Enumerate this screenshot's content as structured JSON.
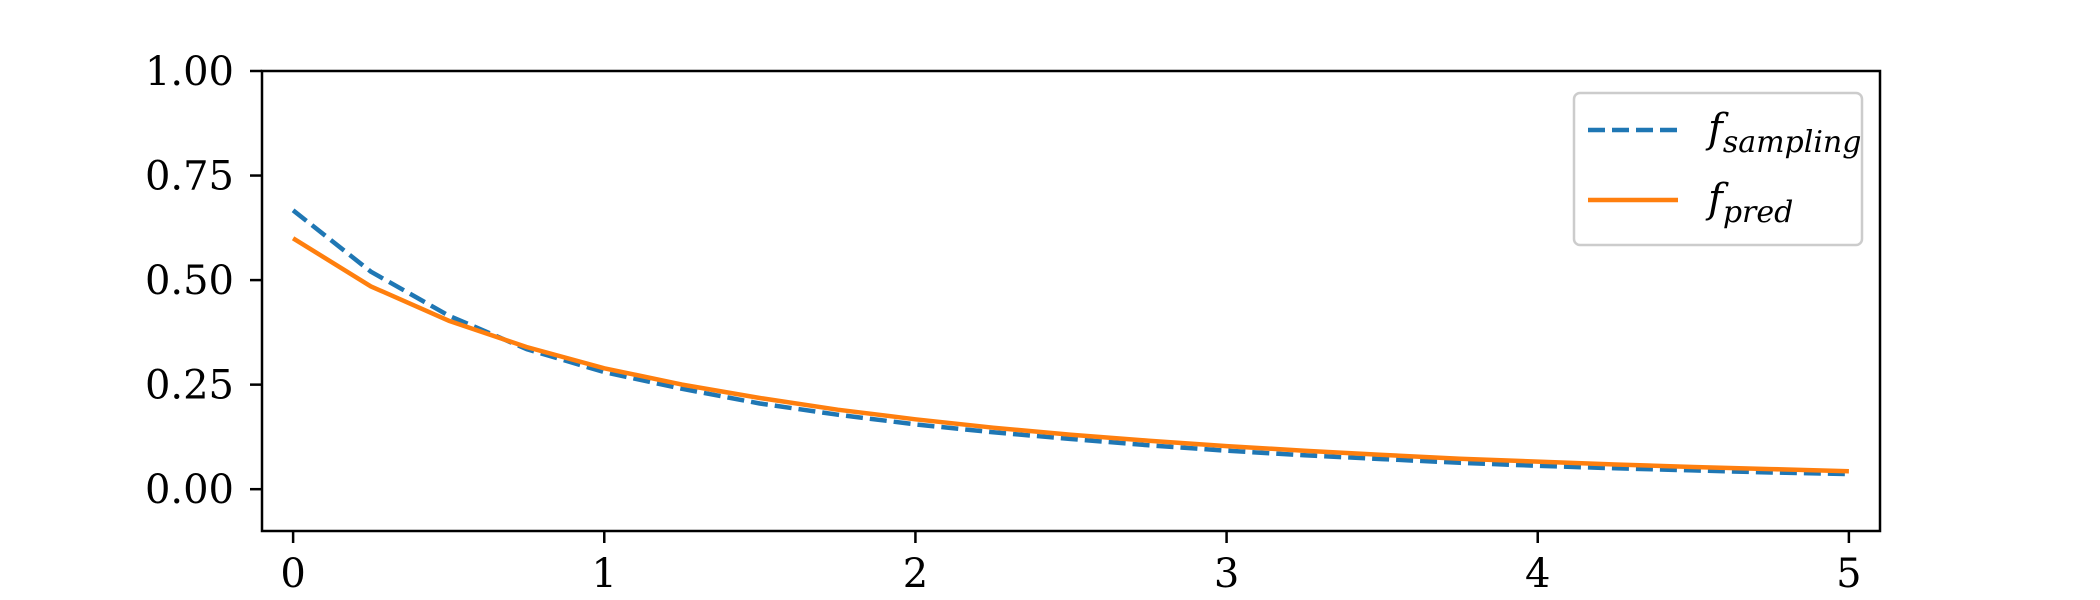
{
  "chart_data": {
    "type": "line",
    "title": "",
    "xlabel": "",
    "ylabel": "",
    "xlim": [
      -0.1,
      5.1
    ],
    "ylim": [
      -0.1,
      1.0
    ],
    "x_ticks": [
      0,
      1,
      2,
      3,
      4,
      5
    ],
    "x_tick_labels": [
      "0",
      "1",
      "2",
      "3",
      "4",
      "5"
    ],
    "y_ticks": [
      0.0,
      0.25,
      0.5,
      0.75,
      1.0
    ],
    "y_tick_labels": [
      "0.00",
      "0.25",
      "0.50",
      "0.75",
      "1.00"
    ],
    "grid": false,
    "legend_position": "top-right",
    "x": [
      0,
      0.25,
      0.5,
      0.75,
      1.0,
      1.25,
      1.5,
      1.75,
      2.0,
      2.25,
      2.5,
      2.75,
      3.0,
      3.25,
      3.5,
      3.75,
      4.0,
      4.25,
      4.5,
      4.75,
      5.0
    ],
    "series": [
      {
        "legend_base": "f",
        "legend_subscript": "sampling",
        "color": "#1f77b4",
        "linestyle": "dashed",
        "values": [
          0.667,
          0.52,
          0.415,
          0.335,
          0.28,
          0.24,
          0.205,
          0.178,
          0.155,
          0.136,
          0.12,
          0.105,
          0.092,
          0.081,
          0.072,
          0.063,
          0.056,
          0.05,
          0.045,
          0.04,
          0.036
        ]
      },
      {
        "legend_base": "f",
        "legend_subscript": "pred",
        "color": "#ff7f0e",
        "linestyle": "solid",
        "values": [
          0.6,
          0.485,
          0.403,
          0.34,
          0.289,
          0.25,
          0.218,
          0.19,
          0.167,
          0.147,
          0.13,
          0.116,
          0.103,
          0.092,
          0.082,
          0.073,
          0.066,
          0.059,
          0.053,
          0.048,
          0.043
        ]
      }
    ]
  }
}
